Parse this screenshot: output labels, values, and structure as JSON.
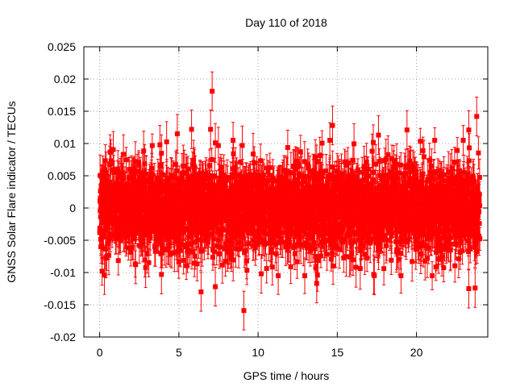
{
  "chart_data": {
    "type": "scatter",
    "title": "Day 110 of 2018",
    "xlabel": "GPS time / hours",
    "ylabel": "GNSS Solar Flare indicator / TECUs",
    "xlim": [
      -1,
      24.5
    ],
    "ylim": [
      -0.02,
      0.025
    ],
    "xticks": [
      0,
      5,
      10,
      15,
      20
    ],
    "xtick_labels": [
      "0",
      "5",
      "10",
      "15",
      "20"
    ],
    "yticks": [
      -0.02,
      -0.015,
      -0.01,
      -0.005,
      0,
      0.005,
      0.01,
      0.015,
      0.02,
      0.025
    ],
    "ytick_labels": [
      "-0.02",
      "-0.015",
      "-0.01",
      "-0.005",
      "0",
      "0.005",
      "0.01",
      "0.015",
      "0.02",
      "0.025"
    ],
    "grid": true,
    "series": [
      {
        "name": "Solar flare indicator",
        "color": "#ff0000",
        "marker": "square",
        "x_start": 0,
        "x_end": 24,
        "n_points": 2880,
        "typical_spread": 0.0035,
        "typical_error": 0.0025,
        "outliers": [
          {
            "x": 7.1,
            "y": 0.0181
          },
          {
            "x": 7.0,
            "y": 0.0122
          },
          {
            "x": 7.3,
            "y": 0.0101
          },
          {
            "x": 5.8,
            "y": 0.0122
          },
          {
            "x": 4.9,
            "y": 0.0115
          },
          {
            "x": 3.8,
            "y": 0.0098
          },
          {
            "x": 9.0,
            "y": 0.0097
          },
          {
            "x": 14.7,
            "y": 0.0128
          },
          {
            "x": 17.6,
            "y": 0.0113
          },
          {
            "x": 19.4,
            "y": 0.0121
          },
          {
            "x": 23.3,
            "y": 0.0121
          },
          {
            "x": 23.8,
            "y": 0.0142
          },
          {
            "x": 9.1,
            "y": -0.0159
          },
          {
            "x": 6.4,
            "y": -0.013
          },
          {
            "x": 7.3,
            "y": -0.0122
          },
          {
            "x": 13.7,
            "y": -0.0117
          },
          {
            "x": 23.3,
            "y": -0.0125
          },
          {
            "x": 23.7,
            "y": -0.0124
          },
          {
            "x": 0.3,
            "y": -0.0104
          },
          {
            "x": 3.9,
            "y": -0.0103
          },
          {
            "x": 10.2,
            "y": -0.0102
          },
          {
            "x": 17.3,
            "y": -0.0103
          }
        ]
      }
    ]
  }
}
